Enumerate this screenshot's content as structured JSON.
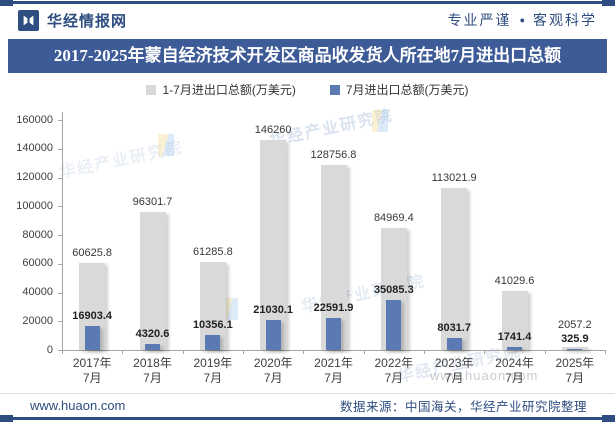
{
  "header": {
    "brand": "华经情报网",
    "slogan_left": "专业严谨",
    "slogan_dot": "●",
    "slogan_right": "客观科学"
  },
  "title": "2017-2025年蒙自经济技术开发区商品收发货人所在地7月进出口总额",
  "legend": [
    {
      "label": "1-7月进出口总额(万美元)",
      "color": "#d9d9d9"
    },
    {
      "label": "7月进出口总额(万美元)",
      "color": "#5b7ab1"
    }
  ],
  "chart_data": {
    "type": "bar",
    "categories": [
      "2017年\n7月",
      "2018年\n7月",
      "2019年\n7月",
      "2020年\n7月",
      "2021年\n7月",
      "2022年\n7月",
      "2023年\n7月",
      "2024年\n7月",
      "2025年\n7月"
    ],
    "series": [
      {
        "name": "1-7月进出口总额(万美元)",
        "color": "#d9d9d9",
        "values": [
          60625.8,
          96301.7,
          61285.8,
          146260,
          128756.8,
          84969.4,
          113021.9,
          41029.6,
          2057.2
        ]
      },
      {
        "name": "7月进出口总额(万美元)",
        "color": "#5b7ab1",
        "values": [
          16903.4,
          4320.6,
          10356.1,
          21030.1,
          22591.9,
          35085.3,
          8031.7,
          1741.4,
          325.9
        ]
      }
    ],
    "ylim": [
      0,
      160000
    ],
    "ytick_step": 20000,
    "grid": false,
    "legend_position": "top",
    "xlabel": "",
    "ylabel": ""
  },
  "watermark": {
    "name": "华经产业研究院",
    "url": "www.huaon.com"
  },
  "footer": {
    "site": "www.huaon.com",
    "source": "数据来源：中国海关，华经产业研究院整理"
  },
  "colors": {
    "accent_navy": "#2e4d80",
    "banner_bg": "#3d5b97",
    "bar_gray": "#d9d9d9",
    "bar_blue": "#5b7ab1",
    "axis_gray": "#a6a6a6"
  }
}
